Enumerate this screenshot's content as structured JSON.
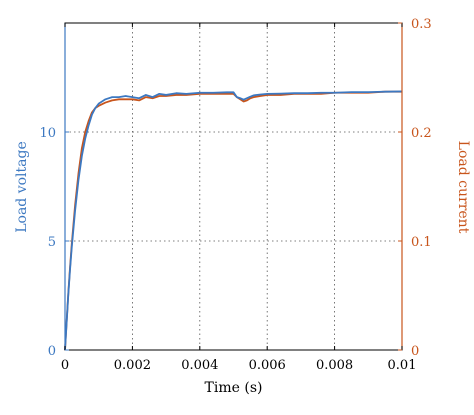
{
  "chart_data": {
    "type": "line",
    "xlabel": "Time (s)",
    "ylabel_left": "Load voltage",
    "ylabel_right": "Load current",
    "xlim": [
      0,
      0.01
    ],
    "ylim_left": [
      0,
      15
    ],
    "ylim_right": [
      0,
      0.3
    ],
    "x_ticks": [
      0,
      0.002,
      0.004,
      0.006,
      0.008,
      0.01
    ],
    "x_tick_labels": [
      "0",
      "0.002",
      "0.004",
      "0.006",
      "0.008",
      "0.01"
    ],
    "y_left_ticks": [
      0,
      5,
      10
    ],
    "y_left_tick_labels": [
      "0",
      "5",
      "10"
    ],
    "y_right_ticks": [
      0,
      0.1,
      0.2,
      0.3
    ],
    "y_right_tick_labels": [
      "0",
      "0.1",
      "0.2",
      "0.3"
    ],
    "grid": true,
    "colors": {
      "voltage": "#3c78c1",
      "current": "#c8551c"
    },
    "series": [
      {
        "axis": "left",
        "x": [
          0,
          5e-05,
          0.0001,
          0.00015,
          0.0002,
          0.0003,
          0.0004,
          0.0005,
          0.0006,
          0.0007,
          0.0008,
          0.0009,
          0.001,
          0.0012,
          0.0014,
          0.0016,
          0.0018,
          0.002,
          0.0022,
          0.0024,
          0.0026,
          0.0028,
          0.003,
          0.0033,
          0.0036,
          0.004,
          0.0044,
          0.0048,
          0.005,
          0.0051,
          0.0052,
          0.0053,
          0.0054,
          0.0055,
          0.0056,
          0.0058,
          0.006,
          0.0064,
          0.0068,
          0.0072,
          0.0076,
          0.008,
          0.0085,
          0.009,
          0.0095,
          0.01
        ],
        "values": [
          0,
          1.3,
          2.6,
          3.7,
          4.7,
          6.4,
          7.8,
          8.9,
          9.7,
          10.3,
          10.8,
          11.1,
          11.3,
          11.5,
          11.6,
          11.6,
          11.65,
          11.6,
          11.55,
          11.7,
          11.6,
          11.75,
          11.7,
          11.78,
          11.75,
          11.8,
          11.8,
          11.82,
          11.82,
          11.6,
          11.55,
          11.48,
          11.55,
          11.62,
          11.68,
          11.72,
          11.75,
          11.76,
          11.78,
          11.78,
          11.8,
          11.8,
          11.83,
          11.83,
          11.85,
          11.86
        ]
      },
      {
        "axis": "right",
        "x": [
          0,
          5e-05,
          0.0001,
          0.00015,
          0.0002,
          0.0003,
          0.0004,
          0.0005,
          0.0006,
          0.0007,
          0.0008,
          0.0009,
          0.001,
          0.0012,
          0.0014,
          0.0016,
          0.0018,
          0.002,
          0.0022,
          0.0024,
          0.0026,
          0.0028,
          0.003,
          0.0033,
          0.0036,
          0.004,
          0.0044,
          0.0048,
          0.005,
          0.0051,
          0.0052,
          0.0053,
          0.0054,
          0.0055,
          0.0056,
          0.0058,
          0.006,
          0.0064,
          0.0068,
          0.0072,
          0.0076,
          0.008,
          0.0085,
          0.009,
          0.0095,
          0.01
        ],
        "values": [
          0,
          0.027,
          0.053,
          0.076,
          0.097,
          0.133,
          0.162,
          0.185,
          0.2,
          0.21,
          0.218,
          0.222,
          0.224,
          0.227,
          0.229,
          0.23,
          0.23,
          0.23,
          0.229,
          0.232,
          0.231,
          0.233,
          0.233,
          0.234,
          0.234,
          0.235,
          0.235,
          0.235,
          0.235,
          0.232,
          0.23,
          0.228,
          0.229,
          0.231,
          0.232,
          0.233,
          0.234,
          0.234,
          0.235,
          0.235,
          0.235,
          0.236,
          0.236,
          0.236,
          0.237,
          0.237
        ]
      }
    ]
  }
}
